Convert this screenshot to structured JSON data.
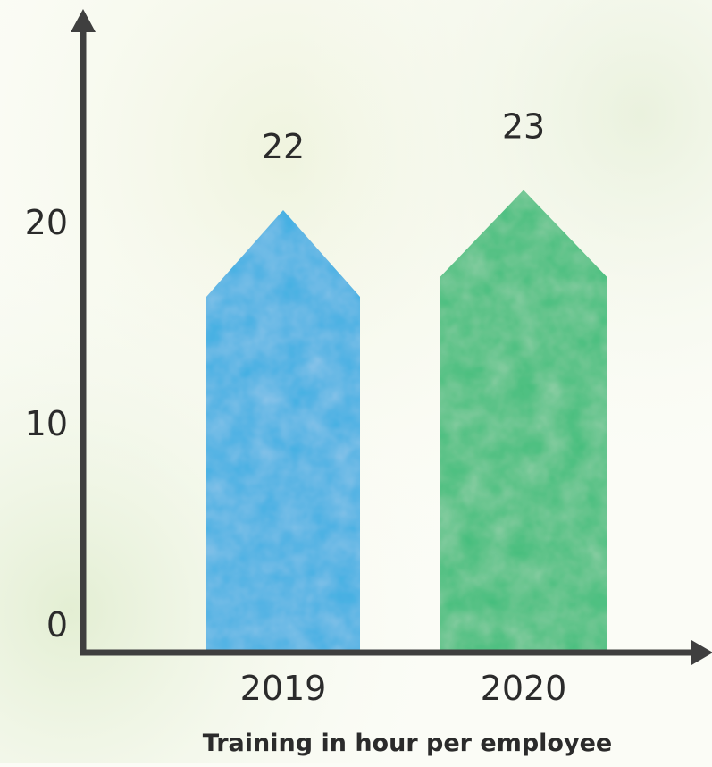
{
  "chart_data": {
    "type": "bar",
    "categories": [
      "2019",
      "2020"
    ],
    "values": [
      22,
      23
    ],
    "data_labels": [
      "22",
      "23"
    ],
    "colors": [
      "#3aaee2",
      "#3dbd7a"
    ],
    "yticks": [
      "0",
      "10",
      "20"
    ],
    "ylim": [
      0,
      25
    ],
    "xlabel": "Training in hour per employee",
    "ylabel": "",
    "title": "",
    "grid": false,
    "legend": "none",
    "axis_color": "#3f3f3f",
    "bar_shape": "arrow-up"
  }
}
